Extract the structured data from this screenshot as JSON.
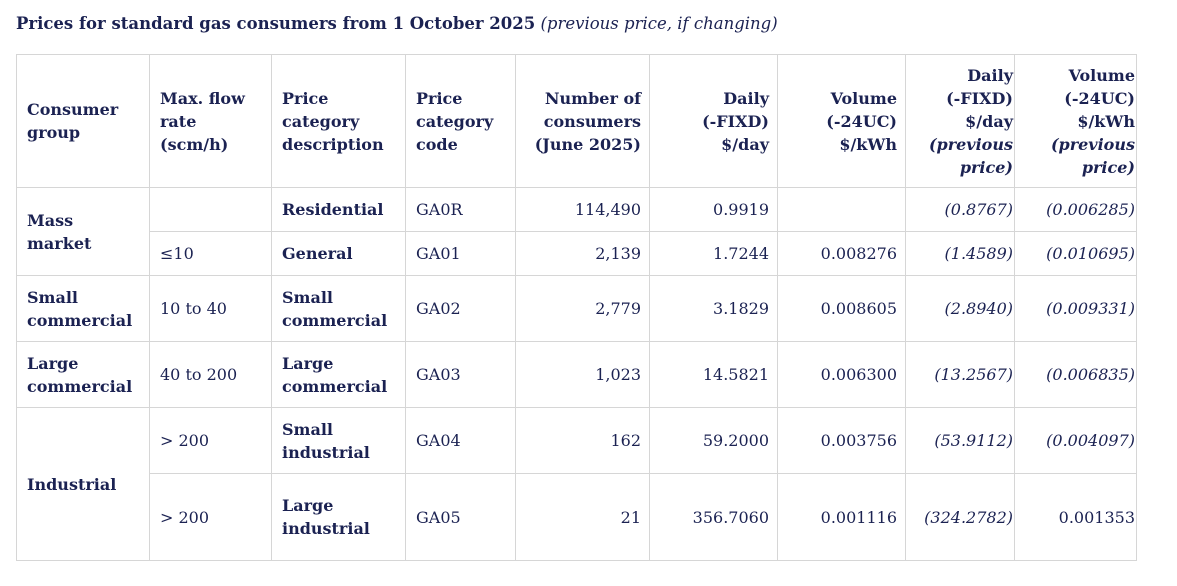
{
  "title": {
    "main": "Prices for standard gas consumers from 1 October 2025",
    "sub": "(previous price, if changing)"
  },
  "headers": [
    [
      "Consumer",
      "group"
    ],
    [
      "Max. flow",
      "rate",
      "(scm/h)"
    ],
    [
      "Price",
      "category",
      "description"
    ],
    [
      "Price",
      "category",
      "code"
    ],
    [
      "Number of",
      "consumers",
      "(June 2025)"
    ],
    [
      "Daily",
      "(-FIXD)",
      "$/day"
    ],
    [
      "Volume",
      "(-24UC)",
      "$/kWh"
    ],
    [
      "Daily",
      "(-FIXD)",
      "$/day",
      "(previous",
      "price)"
    ],
    [
      "Volume",
      "(-24UC)",
      "$/kWh",
      "(previous",
      "price)"
    ]
  ],
  "groups": {
    "mass_market": "Mass market",
    "small_commercial": [
      "Small",
      "commercial"
    ],
    "large_commercial": [
      "Large",
      "commercial"
    ],
    "industrial": "Industrial"
  },
  "rows": [
    {
      "flow": "",
      "desc": [
        "Residential"
      ],
      "code": "GA0R",
      "consumers": "114,490",
      "daily": "0.9919",
      "volume": "",
      "prev_daily": "(0.8767)",
      "prev_volume": "(0.006285)"
    },
    {
      "flow": "≤10",
      "desc": [
        "General"
      ],
      "code": "GA01",
      "consumers": "2,139",
      "daily": "1.7244",
      "volume": "0.008276",
      "prev_daily": "(1.4589)",
      "prev_volume": "(0.010695)"
    },
    {
      "flow": "10 to 40",
      "desc": [
        "Small",
        "commercial"
      ],
      "code": "GA02",
      "consumers": "2,779",
      "daily": "3.1829",
      "volume": "0.008605",
      "prev_daily": "(2.8940)",
      "prev_volume": "(0.009331)"
    },
    {
      "flow": "40 to 200",
      "desc": [
        "Large",
        "commercial"
      ],
      "code": "GA03",
      "consumers": "1,023",
      "daily": "14.5821",
      "volume": "0.006300",
      "prev_daily": "(13.2567)",
      "prev_volume": "(0.006835)"
    },
    {
      "flow": "> 200",
      "desc": [
        "Small",
        "industrial"
      ],
      "code": "GA04",
      "consumers": "162",
      "daily": "59.2000",
      "volume": "0.003756",
      "prev_daily": "(53.9112)",
      "prev_volume": "(0.004097)"
    },
    {
      "flow": "> 200",
      "desc": [
        "Large",
        "industrial"
      ],
      "code": "GA05",
      "consumers": "21",
      "daily": "356.7060",
      "volume": "0.001116",
      "prev_daily": "(324.2782)",
      "prev_volume": "0.001353"
    }
  ]
}
